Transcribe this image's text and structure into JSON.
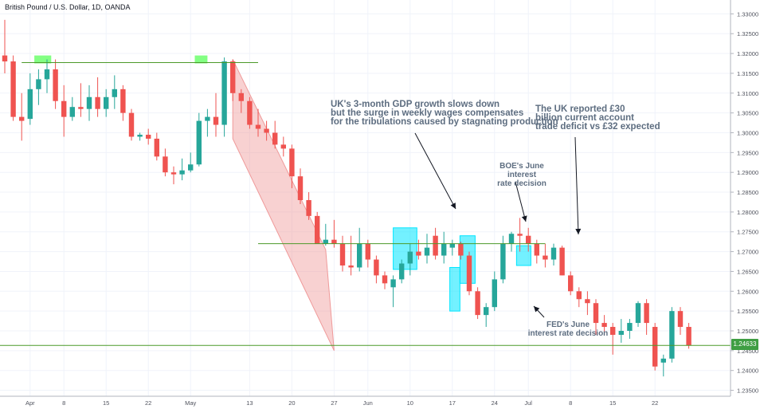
{
  "chart_data": {
    "type": "candlestick",
    "title": "British Pound / U.S. Dollar, 1D, OANDA",
    "ylim": [
      1.2335,
      1.3335
    ],
    "y_ticks": [
      "1.33000",
      "1.32500",
      "1.32000",
      "1.31500",
      "1.31000",
      "1.30500",
      "1.30000",
      "1.29500",
      "1.29000",
      "1.28500",
      "1.28000",
      "1.27500",
      "1.27000",
      "1.26500",
      "1.26000",
      "1.25500",
      "1.25000",
      "1.24500",
      "1.24000",
      "1.23500"
    ],
    "x_ticks": [
      {
        "label": "Apr",
        "bar": 3
      },
      {
        "label": "8",
        "bar": 7
      },
      {
        "label": "15",
        "bar": 12
      },
      {
        "label": "22",
        "bar": 17
      },
      {
        "label": "May",
        "bar": 22
      },
      {
        "label": "13",
        "bar": 29
      },
      {
        "label": "20",
        "bar": 34
      },
      {
        "label": "27",
        "bar": 39
      },
      {
        "label": "Jun",
        "bar": 43
      },
      {
        "label": "10",
        "bar": 48
      },
      {
        "label": "17",
        "bar": 53
      },
      {
        "label": "24",
        "bar": 58
      },
      {
        "label": "Jul",
        "bar": 62
      },
      {
        "label": "8",
        "bar": 67
      },
      {
        "label": "15",
        "bar": 72
      },
      {
        "label": "22",
        "bar": 77
      }
    ],
    "candles": [
      {
        "o": 1.3195,
        "h": 1.3285,
        "l": 1.315,
        "c": 1.318
      },
      {
        "o": 1.318,
        "h": 1.3195,
        "l": 1.303,
        "c": 1.304
      },
      {
        "o": 1.304,
        "h": 1.31,
        "l": 1.298,
        "c": 1.303
      },
      {
        "o": 1.3035,
        "h": 1.315,
        "l": 1.302,
        "c": 1.311
      },
      {
        "o": 1.311,
        "h": 1.316,
        "l": 1.307,
        "c": 1.3135
      },
      {
        "o": 1.3135,
        "h": 1.3185,
        "l": 1.31,
        "c": 1.316
      },
      {
        "o": 1.316,
        "h": 1.3185,
        "l": 1.306,
        "c": 1.308
      },
      {
        "o": 1.308,
        "h": 1.312,
        "l": 1.299,
        "c": 1.304
      },
      {
        "o": 1.304,
        "h": 1.309,
        "l": 1.303,
        "c": 1.3065
      },
      {
        "o": 1.3065,
        "h": 1.3125,
        "l": 1.304,
        "c": 1.306
      },
      {
        "o": 1.306,
        "h": 1.312,
        "l": 1.303,
        "c": 1.309
      },
      {
        "o": 1.309,
        "h": 1.314,
        "l": 1.304,
        "c": 1.306
      },
      {
        "o": 1.306,
        "h": 1.311,
        "l": 1.304,
        "c": 1.309
      },
      {
        "o": 1.309,
        "h": 1.3145,
        "l": 1.306,
        "c": 1.311
      },
      {
        "o": 1.311,
        "h": 1.312,
        "l": 1.303,
        "c": 1.305
      },
      {
        "o": 1.305,
        "h": 1.306,
        "l": 1.298,
        "c": 1.299
      },
      {
        "o": 1.299,
        "h": 1.3,
        "l": 1.298,
        "c": 1.2995
      },
      {
        "o": 1.2995,
        "h": 1.301,
        "l": 1.297,
        "c": 1.2985
      },
      {
        "o": 1.2985,
        "h": 1.3,
        "l": 1.293,
        "c": 1.294
      },
      {
        "o": 1.294,
        "h": 1.296,
        "l": 1.289,
        "c": 1.29
      },
      {
        "o": 1.29,
        "h": 1.2915,
        "l": 1.287,
        "c": 1.2895
      },
      {
        "o": 1.2895,
        "h": 1.2935,
        "l": 1.288,
        "c": 1.2905
      },
      {
        "o": 1.2905,
        "h": 1.295,
        "l": 1.29,
        "c": 1.292
      },
      {
        "o": 1.292,
        "h": 1.305,
        "l": 1.2915,
        "c": 1.303
      },
      {
        "o": 1.303,
        "h": 1.306,
        "l": 1.299,
        "c": 1.304
      },
      {
        "o": 1.304,
        "h": 1.31,
        "l": 1.299,
        "c": 1.302
      },
      {
        "o": 1.302,
        "h": 1.319,
        "l": 1.299,
        "c": 1.318
      },
      {
        "o": 1.318,
        "h": 1.3185,
        "l": 1.308,
        "c": 1.31
      },
      {
        "o": 1.31,
        "h": 1.311,
        "l": 1.305,
        "c": 1.308
      },
      {
        "o": 1.308,
        "h": 1.309,
        "l": 1.301,
        "c": 1.302
      },
      {
        "o": 1.302,
        "h": 1.306,
        "l": 1.299,
        "c": 1.301
      },
      {
        "o": 1.301,
        "h": 1.303,
        "l": 1.298,
        "c": 1.3
      },
      {
        "o": 1.3,
        "h": 1.303,
        "l": 1.296,
        "c": 1.297
      },
      {
        "o": 1.297,
        "h": 1.299,
        "l": 1.294,
        "c": 1.296
      },
      {
        "o": 1.296,
        "h": 1.297,
        "l": 1.286,
        "c": 1.289
      },
      {
        "o": 1.289,
        "h": 1.291,
        "l": 1.282,
        "c": 1.283
      },
      {
        "o": 1.283,
        "h": 1.285,
        "l": 1.278,
        "c": 1.279
      },
      {
        "o": 1.279,
        "h": 1.28,
        "l": 1.272,
        "c": 1.272
      },
      {
        "o": 1.272,
        "h": 1.277,
        "l": 1.2715,
        "c": 1.273
      },
      {
        "o": 1.273,
        "h": 1.278,
        "l": 1.271,
        "c": 1.272
      },
      {
        "o": 1.272,
        "h": 1.274,
        "l": 1.265,
        "c": 1.2665
      },
      {
        "o": 1.2665,
        "h": 1.274,
        "l": 1.264,
        "c": 1.266
      },
      {
        "o": 1.266,
        "h": 1.276,
        "l": 1.265,
        "c": 1.272
      },
      {
        "o": 1.272,
        "h": 1.273,
        "l": 1.266,
        "c": 1.268
      },
      {
        "o": 1.268,
        "h": 1.269,
        "l": 1.262,
        "c": 1.264
      },
      {
        "o": 1.264,
        "h": 1.265,
        "l": 1.2605,
        "c": 1.262
      },
      {
        "o": 1.261,
        "h": 1.264,
        "l": 1.256,
        "c": 1.263
      },
      {
        "o": 1.263,
        "h": 1.268,
        "l": 1.262,
        "c": 1.267
      },
      {
        "o": 1.267,
        "h": 1.272,
        "l": 1.264,
        "c": 1.27
      },
      {
        "o": 1.27,
        "h": 1.273,
        "l": 1.268,
        "c": 1.269
      },
      {
        "o": 1.269,
        "h": 1.2745,
        "l": 1.267,
        "c": 1.271
      },
      {
        "o": 1.274,
        "h": 1.276,
        "l": 1.268,
        "c": 1.269
      },
      {
        "o": 1.269,
        "h": 1.275,
        "l": 1.267,
        "c": 1.272
      },
      {
        "o": 1.271,
        "h": 1.273,
        "l": 1.269,
        "c": 1.272
      },
      {
        "o": 1.272,
        "h": 1.2725,
        "l": 1.268,
        "c": 1.269
      },
      {
        "o": 1.269,
        "h": 1.27,
        "l": 1.259,
        "c": 1.26
      },
      {
        "o": 1.26,
        "h": 1.261,
        "l": 1.253,
        "c": 1.254
      },
      {
        "o": 1.254,
        "h": 1.257,
        "l": 1.251,
        "c": 1.256
      },
      {
        "o": 1.256,
        "h": 1.265,
        "l": 1.255,
        "c": 1.263
      },
      {
        "o": 1.263,
        "h": 1.274,
        "l": 1.262,
        "c": 1.272
      },
      {
        "o": 1.272,
        "h": 1.275,
        "l": 1.27,
        "c": 1.2745
      },
      {
        "o": 1.2745,
        "h": 1.2785,
        "l": 1.27,
        "c": 1.274
      },
      {
        "o": 1.274,
        "h": 1.276,
        "l": 1.27,
        "c": 1.272
      },
      {
        "o": 1.272,
        "h": 1.273,
        "l": 1.267,
        "c": 1.269
      },
      {
        "o": 1.269,
        "h": 1.272,
        "l": 1.266,
        "c": 1.268
      },
      {
        "o": 1.268,
        "h": 1.272,
        "l": 1.2665,
        "c": 1.271
      },
      {
        "o": 1.271,
        "h": 1.2715,
        "l": 1.264,
        "c": 1.264
      },
      {
        "o": 1.264,
        "h": 1.265,
        "l": 1.259,
        "c": 1.26
      },
      {
        "o": 1.26,
        "h": 1.261,
        "l": 1.256,
        "c": 1.258
      },
      {
        "o": 1.258,
        "h": 1.26,
        "l": 1.254,
        "c": 1.257
      },
      {
        "o": 1.257,
        "h": 1.258,
        "l": 1.249,
        "c": 1.252
      },
      {
        "o": 1.252,
        "h": 1.254,
        "l": 1.249,
        "c": 1.251
      },
      {
        "o": 1.251,
        "h": 1.252,
        "l": 1.244,
        "c": 1.249
      },
      {
        "o": 1.249,
        "h": 1.253,
        "l": 1.247,
        "c": 1.25
      },
      {
        "o": 1.25,
        "h": 1.253,
        "l": 1.248,
        "c": 1.252
      },
      {
        "o": 1.252,
        "h": 1.2575,
        "l": 1.251,
        "c": 1.257
      },
      {
        "o": 1.257,
        "h": 1.258,
        "l": 1.249,
        "c": 1.252
      },
      {
        "o": 1.251,
        "h": 1.252,
        "l": 1.24,
        "c": 1.241
      },
      {
        "o": 1.242,
        "h": 1.244,
        "l": 1.2385,
        "c": 1.243
      },
      {
        "o": 1.243,
        "h": 1.256,
        "l": 1.242,
        "c": 1.255
      },
      {
        "o": 1.255,
        "h": 1.256,
        "l": 1.249,
        "c": 1.251
      },
      {
        "o": 1.251,
        "h": 1.252,
        "l": 1.2455,
        "c": 1.2463
      }
    ],
    "support_level": 1.24633,
    "support_label": "1.24633",
    "resistance_levels": [
      {
        "price": 1.3177,
        "from_bar": 2,
        "to_bar": 30
      },
      {
        "price": 1.272,
        "from_bar": 30,
        "to_bar": 64
      }
    ],
    "channel": {
      "upper_start": {
        "bar": 27,
        "price": 1.3185
      },
      "upper_end": {
        "bar": 38,
        "price": 1.2705
      },
      "lower_end": {
        "bar": 39,
        "price": 1.245
      },
      "lower_start": {
        "bar": 27,
        "price": 1.2985
      },
      "color": "#ef9a9a"
    },
    "highlight_tops": [
      {
        "from_bar": 3.5,
        "to_bar": 5.5,
        "price_top": 1.3195,
        "price_bot": 1.3175
      },
      {
        "from_bar": 22.5,
        "to_bar": 24,
        "price_top": 1.3195,
        "price_bot": 1.3175
      }
    ],
    "highlight_boxes": [
      {
        "from_bar": 46,
        "to_bar": 48.8,
        "price_top": 1.276,
        "price_bot": 1.2655
      },
      {
        "from_bar": 52.7,
        "to_bar": 53.9,
        "price_top": 1.266,
        "price_bot": 1.255
      },
      {
        "from_bar": 53.9,
        "to_bar": 55.7,
        "price_top": 1.274,
        "price_bot": 1.262
      },
      {
        "from_bar": 60.6,
        "to_bar": 62.3,
        "price_top": 1.2715,
        "price_bot": 1.2665
      }
    ],
    "annotations": [
      {
        "lines": [
          "UK's 3-month GDP growth slows down",
          "but the surge in weekly wages compensates",
          "for the tribulations caused by stagnating production"
        ]
      },
      {
        "lines": [
          "The UK reported £30",
          "billion current account",
          "trade deficit vs £32 expected"
        ]
      },
      {
        "lines": [
          "BOE's June interest",
          "rate decision"
        ]
      },
      {
        "lines": [
          "FED's June",
          "interest rate decision"
        ]
      }
    ],
    "colors": {
      "up": "#26a69a",
      "down": "#ef5350",
      "highlight": "#00e5ff",
      "level": "#4c9a2a",
      "top_marker": "#6dff6d",
      "grid": "#f0f3fa",
      "axis_text": "#50535e"
    }
  }
}
